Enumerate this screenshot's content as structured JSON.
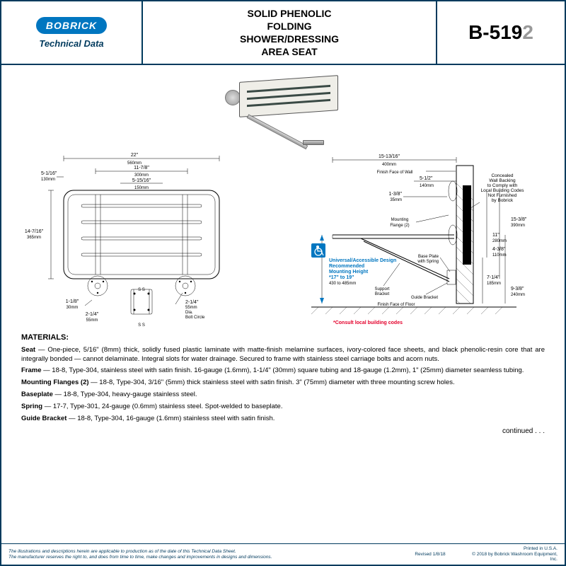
{
  "brand": "BOBRICK",
  "tech_data": "Technical Data",
  "title": "SOLID PHENOLIC\nFOLDING\nSHOWER/DRESSING\nAREA SEAT",
  "model_prefix": "B-519",
  "model_suffix": "2",
  "dims": {
    "w_22": "22\"",
    "w_22mm": "560mm",
    "w_1178": "11-7/8\"",
    "w_1178mm": "300mm",
    "w_51516": "5-15/16\"",
    "w_51516mm": "150mm",
    "h_5116": "5-1/16\"",
    "h_5116mm": "130mm",
    "h_14716": "14-7/16\"",
    "h_14716mm": "365mm",
    "d_118": "1-1/8\"",
    "d_118mm": "30mm",
    "d_214": "2-1/4\"",
    "d_214mm": "55mm",
    "dia_214": "2-1/4\"",
    "dia_214mm": "55mm",
    "dia_lbl": "Dia.",
    "bolt_circle": "Bolt Circle",
    "ss_marks": "S    S",
    "d_151316": "15-13/16\"",
    "d_151316mm": "400mm",
    "wall_face": "Finish Face of Wall",
    "d_512": "5-1/2\"",
    "d_512mm": "140mm",
    "d_138": "1-3/8\"",
    "d_138mm": "35mm",
    "flange_lbl": "Mounting\nFlange (2)",
    "concealed": "Concealed\nWall Backing\nto Comply with\nLocal Building Codes\nNot Furnished\nby Bobrick",
    "h_1538": "15-3/8\"",
    "h_1538mm": "390mm",
    "h_11": "11\"",
    "h_11mm": "280mm",
    "h_438": "4-3/8\"",
    "h_438mm": "110mm",
    "bp_lbl": "Base Plate\nwith Spring",
    "sb_lbl": "Support\nBracket",
    "gb_lbl": "Guide Bracket",
    "h_714": "7-1/4\"",
    "h_714mm": "185mm",
    "h_938": "9-3/8\"",
    "h_938mm": "240mm",
    "floor_face": "Finish Face of Floor",
    "blue_label": "Universal/Accessible Design\nRecommended\nMounting Height\n*17\" to 19\"",
    "blue_mm": "430 to 485mm",
    "red_note": "*Consult local building codes"
  },
  "materials_heading": "MATERIALS:",
  "mat_seat_lbl": "Seat",
  "mat_seat": " — One-piece, 5/16\" (8mm) thick, solidly fused plastic laminate with matte-finish melamine surfaces, ivory-colored face sheets, and black phenolic-resin core that are integrally bonded — cannot delaminate. Integral slots for water drainage. Secured to frame with stainless steel carriage bolts and acorn nuts.",
  "mat_frame_lbl": "Frame",
  "mat_frame": " — 18-8, Type-304, stainless steel with satin finish. 16-gauge (1.6mm), 1-1/4\" (30mm) square tubing and 18-gauge (1.2mm), 1\" (25mm) diameter seamless tubing.",
  "mat_flange_lbl": "Mounting Flanges (2)",
  "mat_flange": " — 18-8, Type-304, 3/16\" (5mm) thick stainless steel with satin finish. 3\" (75mm) diameter with three mounting screw holes.",
  "mat_bp_lbl": "Baseplate",
  "mat_bp": " — 18-8, Type-304, heavy-gauge stainless steel.",
  "mat_spring_lbl": "Spring",
  "mat_spring": " — 17-7, Type-301, 24-gauge (0.6mm) stainless steel. Spot-welded to baseplate.",
  "mat_gb_lbl": "Guide Bracket",
  "mat_gb": " — 18-8, Type-304, 16-gauge (1.6mm) stainless steel with satin finish.",
  "continued": "continued . . .",
  "footer_disclaimer": "The illustrations and descriptions herein are applicable to production as of the date of this Technical Data Sheet.\nThe manufacturer reserves the right to, and does from time to time, make changes and improvements in designs and dimensions.",
  "footer_date": "Revised 1/8/18",
  "footer_print": "Printed in U.S.A.",
  "footer_copy": "© 2018 by Bobrick Washroom Equipment, Inc."
}
